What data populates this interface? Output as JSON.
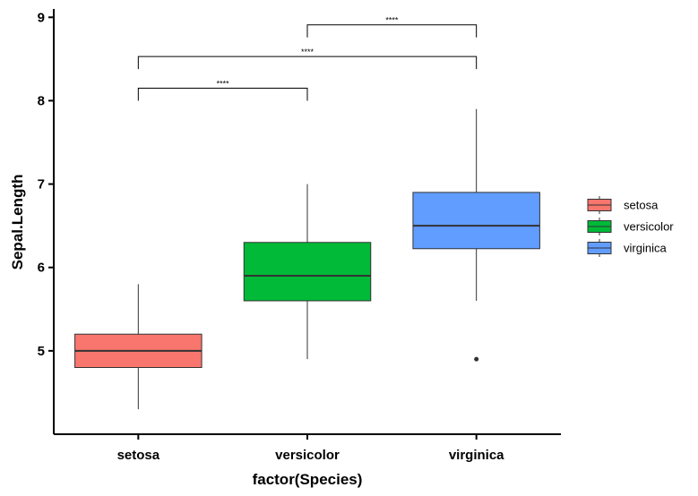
{
  "chart_data": {
    "type": "boxplot",
    "xlabel": "factor(Species)",
    "ylabel": "Sepal.Length",
    "ylim": [
      4.0,
      9.1
    ],
    "yticks": [
      5,
      6,
      7,
      8,
      9
    ],
    "categories": [
      "setosa",
      "versicolor",
      "virginica"
    ],
    "boxes": [
      {
        "category": "setosa",
        "min": 4.3,
        "q1": 4.8,
        "median": 5.0,
        "q3": 5.2,
        "max": 5.8,
        "outliers": [],
        "color": "#F8766D"
      },
      {
        "category": "versicolor",
        "min": 4.9,
        "q1": 5.6,
        "median": 5.9,
        "q3": 6.3,
        "max": 7.0,
        "outliers": [],
        "color": "#00BA38"
      },
      {
        "category": "virginica",
        "min": 5.6,
        "q1": 6.225,
        "median": 6.5,
        "q3": 6.9,
        "max": 7.9,
        "outliers": [
          4.9
        ],
        "color": "#619CFF"
      }
    ],
    "comparisons": [
      {
        "from": "setosa",
        "to": "versicolor",
        "label": "****",
        "y": 8.15
      },
      {
        "from": "setosa",
        "to": "virginica",
        "label": "****",
        "y": 8.53
      },
      {
        "from": "versicolor",
        "to": "virginica",
        "label": "****",
        "y": 8.91
      }
    ],
    "legend": {
      "position": "right",
      "entries": [
        {
          "name": "setosa",
          "color": "#F8766D"
        },
        {
          "name": "versicolor",
          "color": "#00BA38"
        },
        {
          "name": "virginica",
          "color": "#619CFF"
        }
      ]
    },
    "grid": false
  }
}
